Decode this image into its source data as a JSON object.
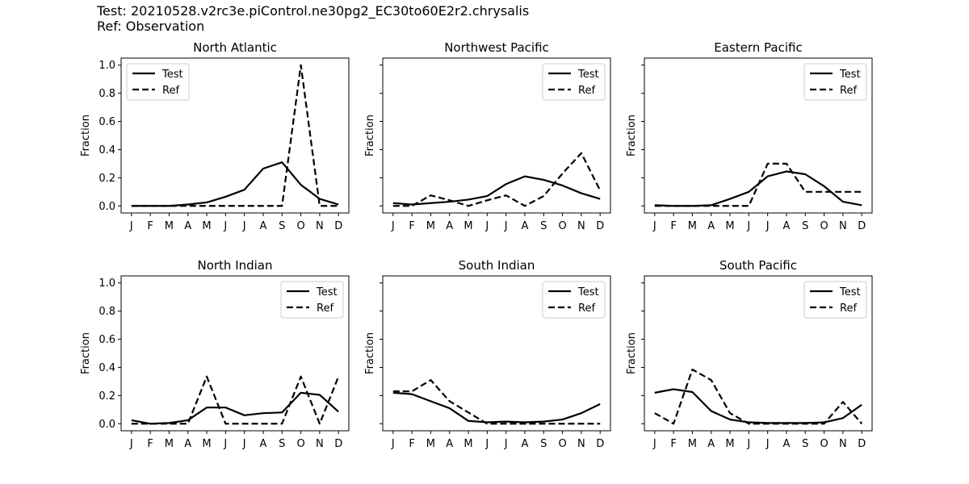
{
  "header": {
    "test_label": "Test: 20210528.v2rc3e.piControl.ne30pg2_EC30to60E2r2.chrysalis",
    "ref_label": "Ref: Observation"
  },
  "chart_data": [
    {
      "type": "line",
      "title": "North Atlantic",
      "xlabel": "",
      "ylabel": "Fraction",
      "categories": [
        "J",
        "F",
        "M",
        "A",
        "M",
        "J",
        "J",
        "A",
        "S",
        "O",
        "N",
        "D"
      ],
      "ylim": [
        -0.05,
        1.05
      ],
      "yticks": [
        "0.0",
        "0.2",
        "0.4",
        "0.6",
        "0.8",
        "1.0"
      ],
      "show_ytick_labels": true,
      "legend_position": "top-left",
      "series": [
        {
          "name": "Test",
          "style": "solid",
          "values": [
            0.0,
            0.0,
            0.0,
            0.01,
            0.025,
            0.065,
            0.115,
            0.265,
            0.31,
            0.15,
            0.05,
            0.01
          ]
        },
        {
          "name": "Ref",
          "style": "dashed",
          "values": [
            0,
            0,
            0,
            0,
            0,
            0,
            0,
            0,
            0,
            1.0,
            0,
            0
          ]
        }
      ]
    },
    {
      "type": "line",
      "title": "Northwest Pacific",
      "xlabel": "",
      "ylabel": "Fraction",
      "categories": [
        "J",
        "F",
        "M",
        "A",
        "M",
        "J",
        "J",
        "A",
        "S",
        "O",
        "N",
        "D"
      ],
      "ylim": [
        -0.05,
        1.05
      ],
      "yticks": [
        "0.0",
        "0.2",
        "0.4",
        "0.6",
        "0.8",
        "1.0"
      ],
      "show_ytick_labels": false,
      "legend_position": "top-right",
      "series": [
        {
          "name": "Test",
          "style": "solid",
          "values": [
            0.02,
            0.01,
            0.02,
            0.03,
            0.045,
            0.07,
            0.155,
            0.21,
            0.185,
            0.145,
            0.09,
            0.05
          ]
        },
        {
          "name": "Ref",
          "style": "dashed",
          "values": [
            0.0,
            0.0,
            0.075,
            0.04,
            0.0,
            0.04,
            0.075,
            0.0,
            0.07,
            0.23,
            0.375,
            0.11
          ]
        }
      ]
    },
    {
      "type": "line",
      "title": "Eastern Pacific",
      "xlabel": "",
      "ylabel": "Fraction",
      "categories": [
        "J",
        "F",
        "M",
        "A",
        "M",
        "J",
        "J",
        "A",
        "S",
        "O",
        "N",
        "D"
      ],
      "ylim": [
        -0.05,
        1.05
      ],
      "yticks": [
        "0.0",
        "0.2",
        "0.4",
        "0.6",
        "0.8",
        "1.0"
      ],
      "show_ytick_labels": false,
      "legend_position": "top-right",
      "series": [
        {
          "name": "Test",
          "style": "solid",
          "values": [
            0.005,
            0.0,
            0.0,
            0.005,
            0.05,
            0.1,
            0.21,
            0.245,
            0.225,
            0.14,
            0.03,
            0.005
          ]
        },
        {
          "name": "Ref",
          "style": "dashed",
          "values": [
            0.0,
            0.0,
            0.0,
            0.0,
            0.0,
            0.0,
            0.3,
            0.3,
            0.1,
            0.1,
            0.1,
            0.1
          ]
        }
      ]
    },
    {
      "type": "line",
      "title": "North Indian",
      "xlabel": "",
      "ylabel": "Fraction",
      "categories": [
        "J",
        "F",
        "M",
        "A",
        "M",
        "J",
        "J",
        "A",
        "S",
        "O",
        "N",
        "D"
      ],
      "ylim": [
        -0.05,
        1.05
      ],
      "yticks": [
        "0.0",
        "0.2",
        "0.4",
        "0.6",
        "0.8",
        "1.0"
      ],
      "show_ytick_labels": true,
      "legend_position": "top-right",
      "series": [
        {
          "name": "Test",
          "style": "solid",
          "values": [
            0.025,
            0.0,
            0.005,
            0.025,
            0.115,
            0.115,
            0.06,
            0.075,
            0.08,
            0.22,
            0.205,
            0.085
          ]
        },
        {
          "name": "Ref",
          "style": "dashed",
          "values": [
            0.0,
            0.0,
            0.0,
            0.0,
            0.335,
            0.0,
            0.0,
            0.0,
            0.0,
            0.335,
            0.0,
            0.335
          ]
        }
      ]
    },
    {
      "type": "line",
      "title": "South Indian",
      "xlabel": "",
      "ylabel": "Fraction",
      "categories": [
        "J",
        "F",
        "M",
        "A",
        "M",
        "J",
        "J",
        "A",
        "S",
        "O",
        "N",
        "D"
      ],
      "ylim": [
        -0.05,
        1.05
      ],
      "yticks": [
        "0.0",
        "0.2",
        "0.4",
        "0.6",
        "0.8",
        "1.0"
      ],
      "show_ytick_labels": false,
      "legend_position": "top-right",
      "series": [
        {
          "name": "Test",
          "style": "solid",
          "values": [
            0.22,
            0.21,
            0.16,
            0.11,
            0.02,
            0.01,
            0.015,
            0.01,
            0.015,
            0.03,
            0.075,
            0.14
          ]
        },
        {
          "name": "Ref",
          "style": "dashed",
          "values": [
            0.23,
            0.23,
            0.31,
            0.16,
            0.08,
            0.0,
            0.0,
            0.0,
            0.0,
            0.0,
            0.0,
            0.0
          ]
        }
      ]
    },
    {
      "type": "line",
      "title": "South Pacific",
      "xlabel": "",
      "ylabel": "Fraction",
      "categories": [
        "J",
        "F",
        "M",
        "A",
        "M",
        "J",
        "J",
        "A",
        "S",
        "O",
        "N",
        "D"
      ],
      "ylim": [
        -0.05,
        1.05
      ],
      "yticks": [
        "0.0",
        "0.2",
        "0.4",
        "0.6",
        "0.8",
        "1.0"
      ],
      "show_ytick_labels": false,
      "legend_position": "top-right",
      "series": [
        {
          "name": "Test",
          "style": "solid",
          "values": [
            0.22,
            0.245,
            0.225,
            0.09,
            0.03,
            0.01,
            0.005,
            0.005,
            0.005,
            0.01,
            0.04,
            0.135
          ]
        },
        {
          "name": "Ref",
          "style": "dashed",
          "values": [
            0.075,
            0.0,
            0.385,
            0.31,
            0.075,
            0.0,
            0.0,
            0.0,
            0.0,
            0.0,
            0.155,
            0.0
          ]
        }
      ]
    }
  ]
}
